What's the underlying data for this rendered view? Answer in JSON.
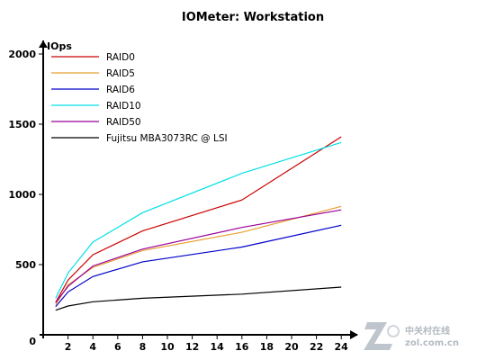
{
  "chart_data": {
    "type": "line",
    "title": "IOMeter: Workstation",
    "ylabel": "IOps",
    "xlabel": "",
    "x": [
      1,
      2,
      4,
      8,
      16,
      24
    ],
    "xlim": [
      0,
      24
    ],
    "ylim": [
      0,
      2000
    ],
    "x_ticks": [
      2,
      4,
      6,
      8,
      10,
      12,
      14,
      16,
      18,
      20,
      22,
      24
    ],
    "y_ticks": [
      500,
      1000,
      1500,
      2000
    ],
    "origin_label": "0",
    "grid": false,
    "legend_position": "top-left",
    "series": [
      {
        "name": "RAID0",
        "color": "#cc0000",
        "values": [
          230,
          390,
          570,
          740,
          960,
          1410
        ]
      },
      {
        "name": "RAID5",
        "color": "#e8a030",
        "values": [
          215,
          355,
          480,
          600,
          730,
          915
        ]
      },
      {
        "name": "RAID6",
        "color": "#0000cc",
        "values": [
          200,
          305,
          415,
          520,
          625,
          780
        ]
      },
      {
        "name": "RAID10",
        "color": "#00e0e8",
        "values": [
          260,
          440,
          660,
          870,
          1150,
          1370
        ]
      },
      {
        "name": "RAID50",
        "color": "#990099",
        "values": [
          230,
          345,
          490,
          610,
          765,
          890
        ]
      },
      {
        "name": "Fujitsu MBA3073RC @ LSI",
        "color": "#000000",
        "values": [
          175,
          205,
          235,
          260,
          290,
          340
        ]
      }
    ]
  },
  "watermark": {
    "brand_cn": "中关村在线",
    "brand_url": "zol.com.cn"
  }
}
